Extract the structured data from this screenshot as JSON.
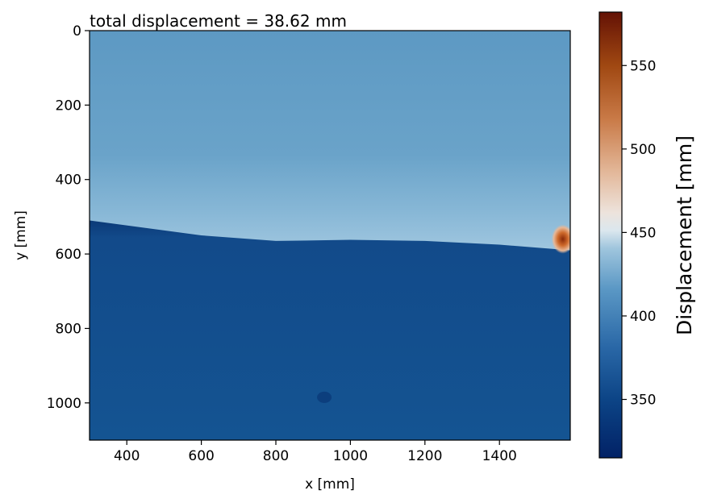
{
  "chart_data": {
    "type": "heatmap",
    "title": "total displacement = 38.62 mm",
    "xlabel": "x [mm]",
    "ylabel": "y [mm]",
    "xlim": [
      300,
      1590
    ],
    "ylim": [
      1100,
      0
    ],
    "xticks": [
      400,
      600,
      800,
      1000,
      1200,
      1400
    ],
    "yticks": [
      0,
      200,
      400,
      600,
      800,
      1000
    ],
    "colorbar": {
      "label": "Displacement  [mm]",
      "range": [
        315,
        582
      ],
      "ticks": [
        350,
        400,
        450,
        500,
        550
      ]
    },
    "field": {
      "upper_region_value_approx": 395,
      "lower_region_value_approx": 350,
      "boundary_y": [
        {
          "x": 300,
          "y": 510
        },
        {
          "x": 600,
          "y": 550
        },
        {
          "x": 800,
          "y": 565
        },
        {
          "x": 1000,
          "y": 562
        },
        {
          "x": 1200,
          "y": 565
        },
        {
          "x": 1400,
          "y": 575
        },
        {
          "x": 1590,
          "y": 590
        }
      ],
      "hotspot": {
        "x": 1570,
        "y": 560,
        "value_approx": 570
      }
    },
    "grid": false
  }
}
